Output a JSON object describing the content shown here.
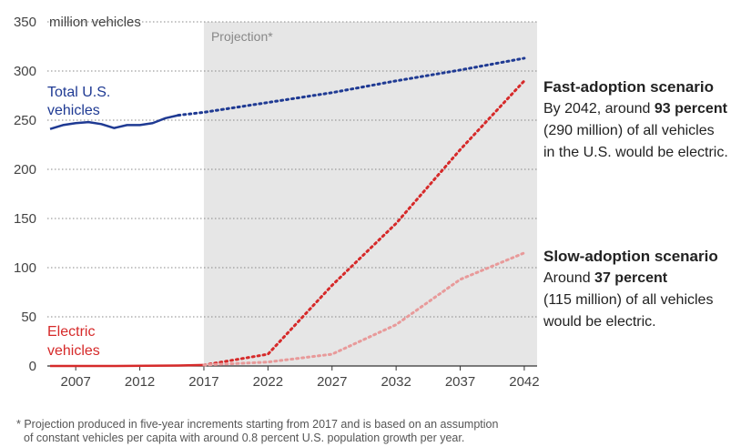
{
  "chart_data": {
    "type": "line",
    "ylabel_unit": "million vehicles",
    "ylim": [
      0,
      350
    ],
    "yticks": [
      "0",
      "50",
      "100",
      "150",
      "200",
      "250",
      "300",
      "350"
    ],
    "xlim": [
      2004.5,
      2043
    ],
    "xticks": [
      "2007",
      "2012",
      "2017",
      "2022",
      "2027",
      "2032",
      "2037",
      "2042"
    ],
    "projection_start": 2017,
    "projection_label": "Projection*",
    "series": [
      {
        "name": "Total U.S. vehicles",
        "color": "#1f3a93",
        "x": [
          2005,
          2006,
          2007,
          2008,
          2009,
          2010,
          2011,
          2012,
          2013,
          2014,
          2015
        ],
        "y": [
          241,
          245,
          247,
          248,
          246,
          242,
          245,
          245,
          247,
          252,
          255
        ]
      },
      {
        "name": "Total U.S. vehicles (projection)",
        "color": "#1f3a93",
        "dashed": true,
        "x": [
          2015,
          2017,
          2022,
          2027,
          2032,
          2037,
          2042
        ],
        "y": [
          255,
          258,
          268,
          278,
          290,
          301,
          313
        ]
      },
      {
        "name": "Electric vehicles",
        "color": "#d62a2a",
        "x": [
          2005,
          2010,
          2015,
          2017
        ],
        "y": [
          0,
          0,
          0.5,
          1
        ]
      },
      {
        "name": "Fast-adoption scenario",
        "color": "#d62a2a",
        "dashed": true,
        "x": [
          2017,
          2022,
          2027,
          2032,
          2037,
          2042
        ],
        "y": [
          1,
          12,
          82,
          145,
          220,
          290
        ]
      },
      {
        "name": "Slow-adoption scenario",
        "color": "#e89a9a",
        "dashed": true,
        "x": [
          2017,
          2022,
          2027,
          2032,
          2037,
          2042
        ],
        "y": [
          1,
          4,
          12,
          42,
          88,
          115
        ]
      }
    ],
    "labels": {
      "total_line1": "Total U.S.",
      "total_line2": "vehicles",
      "electric_line1": "Electric",
      "electric_line2": "vehicles"
    }
  },
  "annotations": {
    "fast": {
      "title": "Fast-adoption scenario",
      "pre": "By 2042, around ",
      "bold": "93 percent",
      "post_line1": "(290 million) of all vehicles",
      "post_line2": "in the U.S. would be electric."
    },
    "slow": {
      "title": "Slow-adoption scenario",
      "pre": "Around ",
      "bold": "37 percent",
      "post_line1": "(115 million) of all vehicles",
      "post_line2": "would be electric."
    }
  },
  "footnote": {
    "line1": "* Projection produced in five-year increments starting from 2017 and is based on an assumption",
    "line2": "of constant vehicles per capita with around 0.8 percent U.S. population growth per year."
  },
  "colors": {
    "total": "#1f3a93",
    "electric": "#d62a2a",
    "slow": "#e89a9a",
    "projection_bg": "#e6e6e6",
    "grid": "#888888"
  }
}
